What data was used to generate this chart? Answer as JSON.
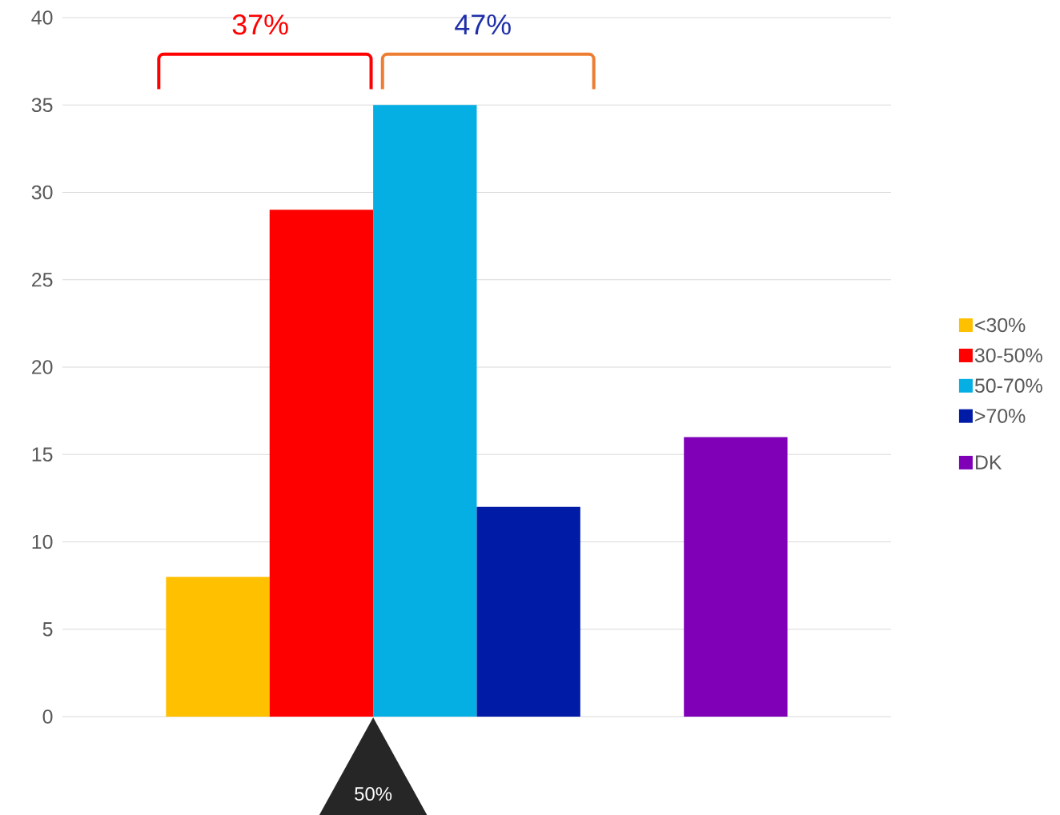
{
  "chart_data": {
    "type": "bar",
    "categories": [
      null,
      null,
      null,
      null,
      null,
      null,
      null,
      null
    ],
    "series": [
      {
        "name": "<30%",
        "color": "#ffc000",
        "values": [
          null,
          8,
          null,
          null,
          null,
          null,
          null,
          null
        ]
      },
      {
        "name": "30-50%",
        "color": "#ff0000",
        "values": [
          null,
          null,
          29,
          null,
          null,
          null,
          null,
          null
        ]
      },
      {
        "name": "50-70%",
        "color": "#05aee3",
        "values": [
          null,
          null,
          null,
          35,
          null,
          null,
          null,
          null
        ]
      },
      {
        "name": ">70%",
        "color": "#001ca6",
        "values": [
          null,
          null,
          null,
          null,
          12,
          null,
          null,
          null
        ]
      },
      {
        "name": "DK",
        "color": "#7f00b7",
        "values": [
          null,
          null,
          null,
          null,
          null,
          null,
          16,
          null
        ]
      }
    ],
    "ylim": [
      0,
      40
    ],
    "yticks": [
      0,
      5,
      10,
      15,
      20,
      25,
      30,
      35,
      40
    ],
    "grid": "y",
    "legend": "right",
    "annotations": [
      "37%",
      "47%",
      "50%"
    ]
  }
}
